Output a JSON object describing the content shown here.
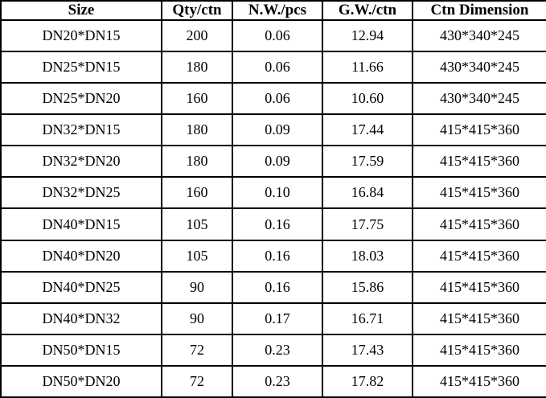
{
  "table": {
    "columns": [
      "Size",
      "Qty/ctn",
      "N.W./pcs",
      "G.W./ctn",
      "Ctn Dimension"
    ],
    "rows": [
      [
        "DN20*DN15",
        "200",
        "0.06",
        "12.94",
        "430*340*245"
      ],
      [
        "DN25*DN15",
        "180",
        "0.06",
        "11.66",
        "430*340*245"
      ],
      [
        "DN25*DN20",
        "160",
        "0.06",
        "10.60",
        "430*340*245"
      ],
      [
        "DN32*DN15",
        "180",
        "0.09",
        "17.44",
        "415*415*360"
      ],
      [
        "DN32*DN20",
        "180",
        "0.09",
        "17.59",
        "415*415*360"
      ],
      [
        "DN32*DN25",
        "160",
        "0.10",
        "16.84",
        "415*415*360"
      ],
      [
        "DN40*DN15",
        "105",
        "0.16",
        "17.75",
        "415*415*360"
      ],
      [
        "DN40*DN20",
        "105",
        "0.16",
        "18.03",
        "415*415*360"
      ],
      [
        "DN40*DN25",
        "90",
        "0.16",
        "15.86",
        "415*415*360"
      ],
      [
        "DN40*DN32",
        "90",
        "0.17",
        "16.71",
        "415*415*360"
      ],
      [
        "DN50*DN15",
        "72",
        "0.23",
        "17.43",
        "415*415*360"
      ],
      [
        "DN50*DN20",
        "72",
        "0.23",
        "17.82",
        "415*415*360"
      ]
    ]
  },
  "colors": {
    "border": "#000000",
    "background": "#ffffff",
    "text": "#000000"
  }
}
